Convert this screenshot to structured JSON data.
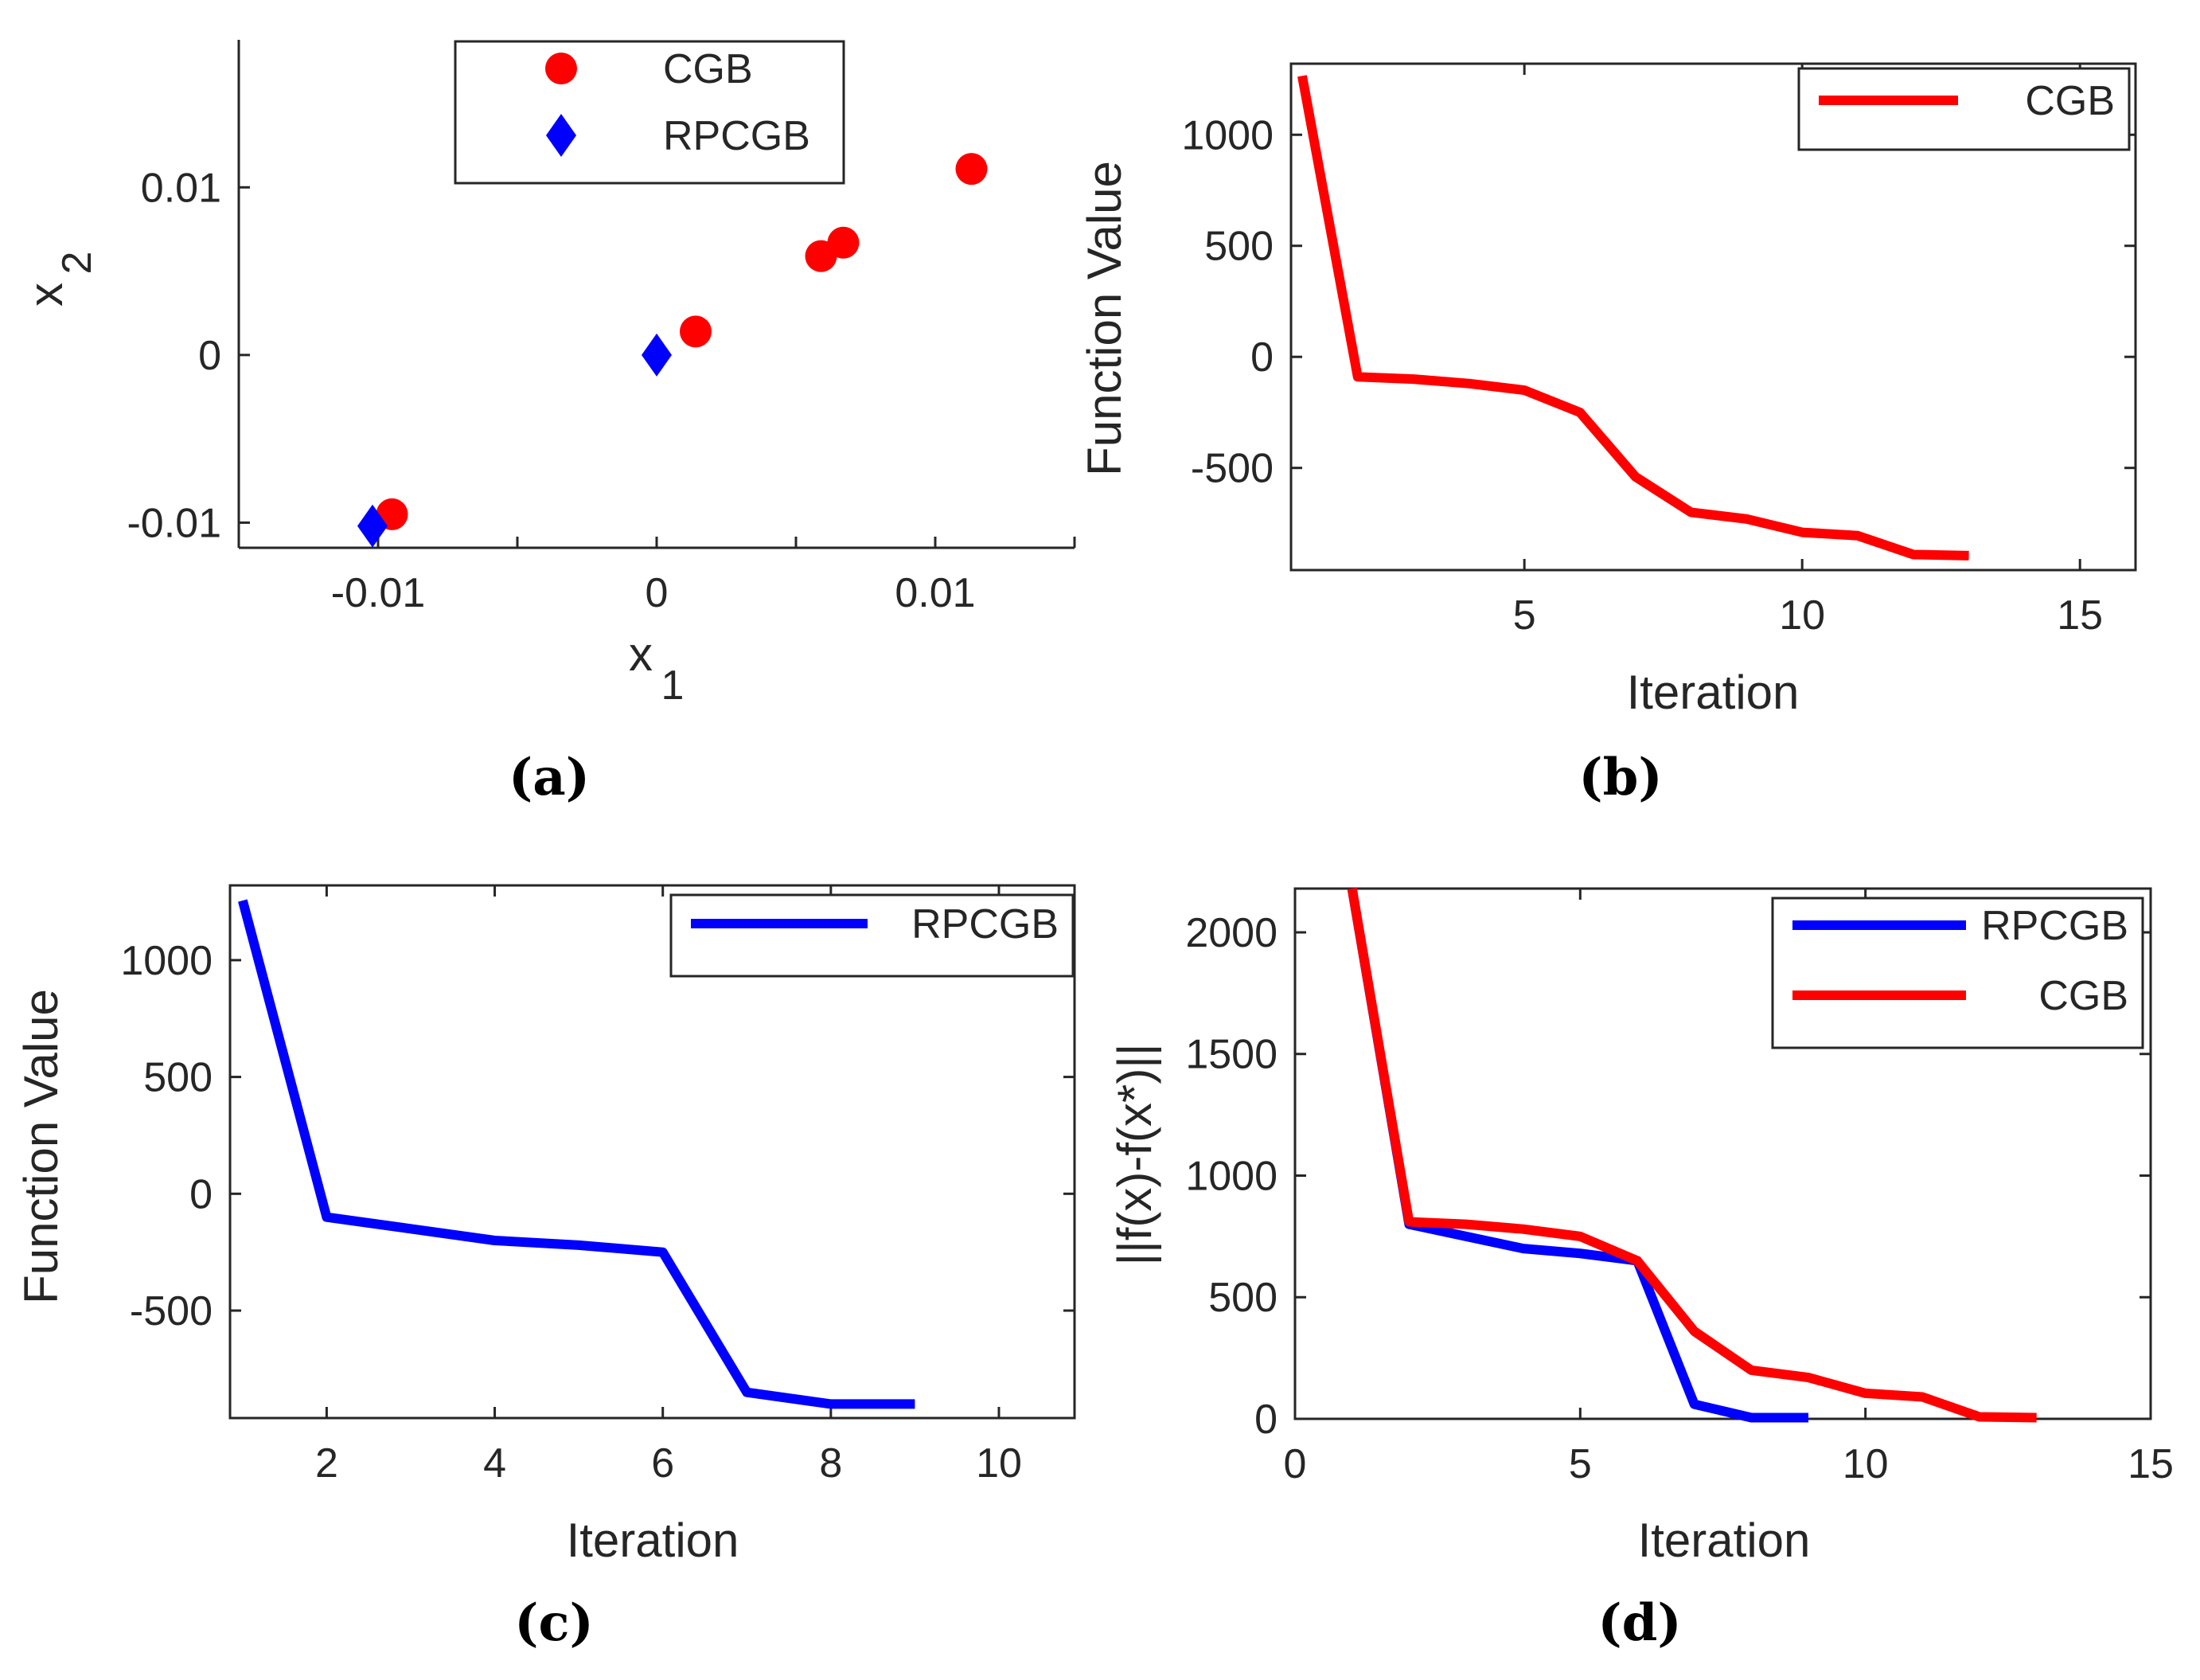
{
  "chart_data": [
    {
      "type": "scatter",
      "panel_label": "(a)",
      "xlabel": "x",
      "xlabel_sub": "1",
      "ylabel": "x",
      "ylabel_sub": "2",
      "xlim": [
        -0.015,
        0.015
      ],
      "ylim": [
        -0.0115,
        0.0188
      ],
      "xticks": [
        -0.01,
        -0.005,
        0,
        0.005,
        0.01,
        0.015
      ],
      "yticks": [
        -0.01,
        0,
        0.01
      ],
      "xtick_labels": [
        "-0.01",
        "0",
        "0.01"
      ],
      "ytick_labels": [
        "-0.01",
        "0",
        "0.01"
      ],
      "box": false,
      "legend_position": "top-center",
      "series": [
        {
          "name": "CGB",
          "marker": "circle",
          "color": "#ff0000",
          "x": [
            0.0113,
            0.0067,
            0.0059,
            0.0014,
            -0.0095
          ],
          "y": [
            0.0111,
            0.0067,
            0.0059,
            0.0014,
            -0.0095
          ]
        },
        {
          "name": "RPCGB",
          "marker": "diamond",
          "color": "#0000ff",
          "x": [
            0.0,
            -0.0102
          ],
          "y": [
            0.0,
            -0.0102
          ]
        }
      ]
    },
    {
      "type": "line",
      "panel_label": "(b)",
      "xlabel": "Iteration",
      "ylabel": "Function Value",
      "xlim": [
        0.8,
        16.0
      ],
      "ylim": [
        -960,
        1320
      ],
      "xticks": [
        5,
        10,
        15
      ],
      "yticks": [
        -500,
        0,
        500,
        1000
      ],
      "xtick_labels": [
        "5",
        "10",
        "15"
      ],
      "ytick_labels": [
        "-500",
        "0",
        "500",
        "1000"
      ],
      "box": true,
      "legend_position": "top-right",
      "series": [
        {
          "name": "CGB",
          "color": "#ff0000",
          "x": [
            1,
            2,
            3,
            4,
            5,
            6,
            7,
            8,
            9,
            10,
            11,
            12,
            13
          ],
          "y": [
            1265,
            -90,
            -100,
            -120,
            -150,
            -250,
            -540,
            -700,
            -730,
            -790,
            -805,
            -890,
            -895
          ]
        }
      ]
    },
    {
      "type": "line",
      "panel_label": "(c)",
      "xlabel": "Iteration",
      "ylabel": "Function Value",
      "xlim": [
        0.85,
        10.9
      ],
      "ylim": [
        -960,
        1320
      ],
      "xticks": [
        2,
        4,
        6,
        8,
        10
      ],
      "yticks": [
        -500,
        0,
        500,
        1000
      ],
      "xtick_labels": [
        "2",
        "4",
        "6",
        "8",
        "10"
      ],
      "ytick_labels": [
        "-500",
        "0",
        "500",
        "1000"
      ],
      "box": true,
      "legend_position": "top-right",
      "series": [
        {
          "name": "RPCGB",
          "color": "#0000ff",
          "x": [
            1,
            2,
            3,
            4,
            5,
            6,
            7,
            8,
            9
          ],
          "y": [
            1255,
            -100,
            -150,
            -200,
            -220,
            -250,
            -850,
            -900,
            -900
          ]
        }
      ]
    },
    {
      "type": "line",
      "panel_label": "(d)",
      "xlabel": "Iteration",
      "ylabel": "||f(x)-f(x*)||",
      "xlim": [
        0,
        15
      ],
      "ylim": [
        0,
        2180
      ],
      "xticks": [
        0,
        5,
        10,
        15
      ],
      "yticks": [
        0,
        500,
        1000,
        1500,
        2000
      ],
      "xtick_labels": [
        "0",
        "5",
        "10",
        "15"
      ],
      "ytick_labels": [
        "0",
        "500",
        "1000",
        "1500",
        "2000"
      ],
      "box": true,
      "legend_position": "top-right",
      "series": [
        {
          "name": "RPCGB",
          "color": "#0000ff",
          "x": [
            1,
            2,
            3,
            4,
            5,
            6,
            7,
            8,
            9
          ],
          "y": [
            2180,
            800,
            750,
            700,
            680,
            650,
            60,
            5,
            5
          ]
        },
        {
          "name": "CGB",
          "color": "#ff0000",
          "x": [
            1,
            2,
            3,
            4,
            5,
            6,
            7,
            8,
            9,
            10,
            11,
            12,
            13
          ],
          "y": [
            2180,
            810,
            800,
            780,
            750,
            650,
            360,
            200,
            170,
            105,
            90,
            8,
            5
          ]
        }
      ]
    }
  ]
}
